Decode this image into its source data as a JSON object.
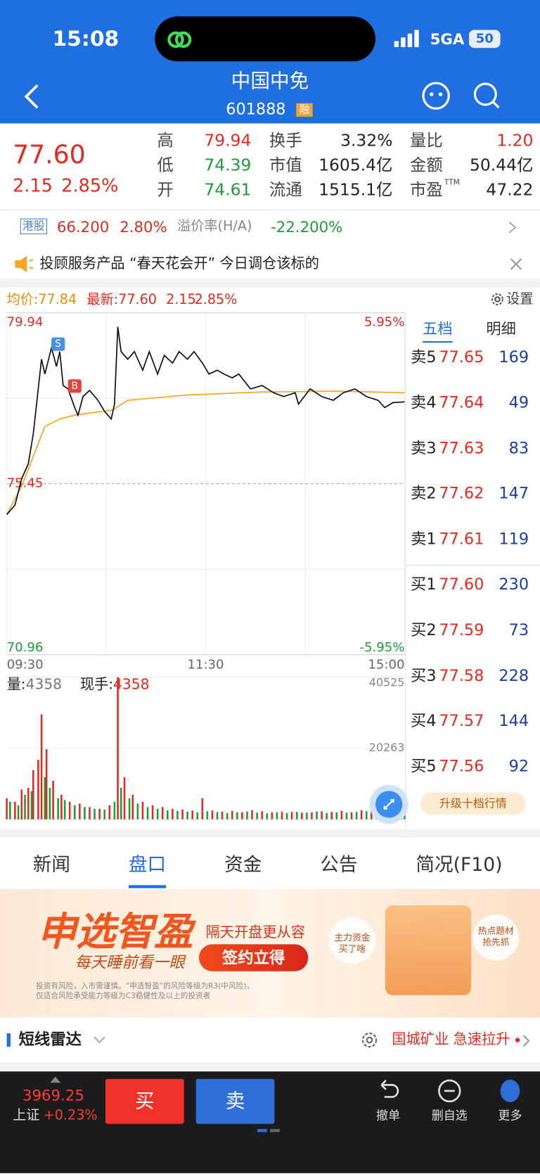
{
  "status_bar": {
    "time": "15:08",
    "network": "5GA",
    "battery": "50"
  },
  "header": {
    "title": "中国中免",
    "code": "601888",
    "badge": "融"
  },
  "quote": {
    "price": "77.60",
    "change": "2.15",
    "change_pct": "2.85%",
    "stats": [
      [
        {
          "label": "高",
          "value": "79.94"
        },
        {
          "label": "换手",
          "value": "3.32%"
        },
        {
          "label": "量比",
          "value": "1.20"
        }
      ],
      [
        {
          "label": "低",
          "value": "74.39"
        },
        {
          "label": "市值",
          "value": "1605.4亿"
        },
        {
          "label": "金额",
          "value": "50.44亿"
        }
      ],
      [
        {
          "label": "开",
          "value": "74.61"
        },
        {
          "label": "流通",
          "value": "1515.1亿"
        },
        {
          "label": "市盈",
          "sup": "TTM",
          "value": "47.22"
        }
      ]
    ]
  },
  "hk": {
    "tag": "港股",
    "price": "66.200",
    "pct": "2.80%",
    "premium_label": "溢价率(H/A)",
    "premium": "-22.200%"
  },
  "notice": "投顾服务产品 “春天花会开” 今日调仓该标的",
  "chart_header": {
    "avg": "均价:77.84",
    "last": "最新:77.60",
    "change": "2.15",
    "pct": "2.85%",
    "settings": "设置"
  },
  "chart_data": [
    {
      "type": "line",
      "xlim": [
        0,
        240
      ],
      "xticks": [
        {
          "value": 0,
          "label": "09:30"
        },
        {
          "value": 120,
          "label": "11:30"
        },
        {
          "value": 240,
          "label": "15:00"
        }
      ],
      "ylim": [
        70.96,
        79.94
      ],
      "yticks": [
        79.94,
        75.45,
        70.96
      ],
      "y2lim": [
        -5.95,
        5.95
      ],
      "y2ticks": [
        {
          "value": 5.95,
          "label": "5.95%"
        },
        {
          "value": -5.95,
          "label": "-5.95%"
        }
      ],
      "series": [
        {
          "color": "#111111",
          "x": [
            0,
            5,
            9,
            13,
            16,
            18,
            21,
            23,
            27,
            30,
            32,
            34,
            37,
            41,
            43,
            46,
            50,
            55,
            59,
            63,
            65,
            67,
            69,
            73,
            77,
            82,
            86,
            91,
            95,
            100,
            104,
            109,
            113,
            118,
            122,
            127,
            131,
            136,
            140,
            147,
            154,
            161,
            167,
            174,
            176,
            183,
            190,
            197,
            203,
            210,
            217,
            224,
            228,
            233,
            240
          ],
          "values": [
            74.64,
            74.89,
            75.58,
            75.97,
            76.76,
            77.54,
            78.72,
            78.33,
            79.02,
            78.53,
            78.92,
            78.03,
            77.94,
            77.45,
            77.25,
            77.74,
            77.9,
            77.64,
            77.35,
            77.15,
            77.54,
            79.57,
            78.92,
            78.72,
            78.92,
            78.43,
            78.92,
            78.33,
            78.82,
            78.62,
            78.92,
            78.72,
            78.92,
            78.62,
            78.33,
            78.43,
            78.33,
            78.23,
            78.33,
            77.94,
            78.03,
            77.84,
            77.74,
            77.84,
            77.54,
            77.94,
            77.74,
            77.64,
            77.84,
            77.94,
            77.74,
            77.64,
            77.45,
            77.58,
            77.6
          ]
        },
        {
          "color": "#f5a623",
          "x": [
            0,
            9,
            16,
            23,
            32,
            41,
            64,
            73,
            109,
            154,
            199,
            240
          ],
          "values": [
            74.64,
            75.38,
            76.17,
            76.95,
            77.15,
            77.25,
            77.39,
            77.64,
            77.78,
            77.86,
            77.88,
            77.84
          ]
        }
      ],
      "annotations": [
        {
          "text": "S",
          "x": 31,
          "y": 78.9,
          "color": "#4a90e2"
        },
        {
          "text": "B",
          "x": 41,
          "y": 77.8,
          "color": "#e8403a"
        }
      ]
    },
    {
      "type": "bar",
      "xlim": [
        0,
        240
      ],
      "ylim": [
        0,
        40525
      ],
      "yticks": [
        40525,
        20263
      ],
      "volume_label": "量:",
      "volume_value": "4358",
      "hand_label": "现手:",
      "hand_value": "4358",
      "series": [
        {
          "color": "#e8281e",
          "x": [
            0,
            5,
            9,
            13,
            16,
            19,
            21,
            24,
            28,
            33,
            38,
            44,
            50,
            56,
            62,
            67,
            71,
            76,
            82,
            88,
            94,
            100,
            106,
            112,
            118,
            124,
            130,
            136,
            142,
            148,
            154,
            160,
            166,
            172,
            178,
            184,
            190,
            196,
            202,
            208,
            214,
            220,
            226,
            232,
            238
          ],
          "values": [
            6000,
            5000,
            8500,
            9000,
            14000,
            17000,
            29900,
            20000,
            11000,
            7000,
            5000,
            4500,
            3500,
            3000,
            4000,
            40525,
            12000,
            7000,
            5000,
            4000,
            3500,
            3000,
            2800,
            2500,
            6000,
            2500,
            2200,
            2400,
            2000,
            2600,
            2300,
            2000,
            2200,
            2100,
            1900,
            2000,
            2300,
            2100,
            2400,
            2000,
            2600,
            2500,
            3000,
            3500,
            4200
          ]
        },
        {
          "color": "#1e9c3a",
          "x": [
            2,
            7,
            11,
            15,
            23,
            26,
            31,
            35,
            41,
            47,
            53,
            59,
            65,
            69,
            74,
            79,
            85,
            91,
            97,
            103,
            109,
            115,
            121,
            127,
            133,
            139,
            145,
            151,
            157,
            163,
            169,
            175,
            181,
            187,
            193,
            199,
            205,
            211,
            217,
            223,
            229,
            235,
            240
          ],
          "values": [
            5000,
            4000,
            7000,
            8000,
            12000,
            9000,
            6000,
            5500,
            4000,
            3500,
            3000,
            2800,
            5000,
            9000,
            6000,
            4500,
            3500,
            3000,
            2600,
            2400,
            2200,
            2000,
            2300,
            2100,
            1800,
            2000,
            2200,
            1900,
            1700,
            2000,
            1800,
            2100,
            1900,
            2200,
            1800,
            2000,
            1900,
            2100,
            2300,
            2000,
            2800,
            3200,
            4358
          ]
        }
      ]
    }
  ],
  "order_book": {
    "tabs": [
      "五档",
      "明细"
    ],
    "rows": [
      [
        "卖5",
        "77.65",
        "169"
      ],
      [
        "卖4",
        "77.64",
        "49"
      ],
      [
        "卖3",
        "77.63",
        "83"
      ],
      [
        "卖2",
        "77.62",
        "147"
      ],
      [
        "卖1",
        "77.61",
        "119"
      ],
      [
        "买1",
        "77.60",
        "230"
      ],
      [
        "买2",
        "77.59",
        "73"
      ],
      [
        "买3",
        "77.58",
        "228"
      ],
      [
        "买4",
        "77.57",
        "144"
      ],
      [
        "买5",
        "77.56",
        "92"
      ]
    ],
    "upgrade": "升级十档行情"
  },
  "tabs": [
    "新闻",
    "盘口",
    "资金",
    "公告",
    "简况(F10)"
  ],
  "banner": {
    "title": "申选智盈",
    "slogan": "每天睡前看一眼",
    "tagline": "隔天开盘更从容",
    "button": "签约立得",
    "bubble1": [
      "主力资金",
      "买了啥"
    ],
    "bubble2": [
      "热点题材",
      "抢先抓"
    ],
    "disclaimer": [
      "投资有风险，入市需谨慎。“申选智盈”的风险等级为R3(中风险)，",
      "仅适合风险承受能力等级为C3稳健性及以上的投资者"
    ]
  },
  "radar": {
    "title": "短线雷达",
    "stock": "国城矿业",
    "signal": "急速拉升"
  },
  "bottom_bar": {
    "index_value": "3969.25",
    "index_name": "上证",
    "index_change": "+0.23%",
    "buy": "买",
    "sell": "卖",
    "actions": [
      "撤单",
      "删自选",
      "更多"
    ]
  }
}
